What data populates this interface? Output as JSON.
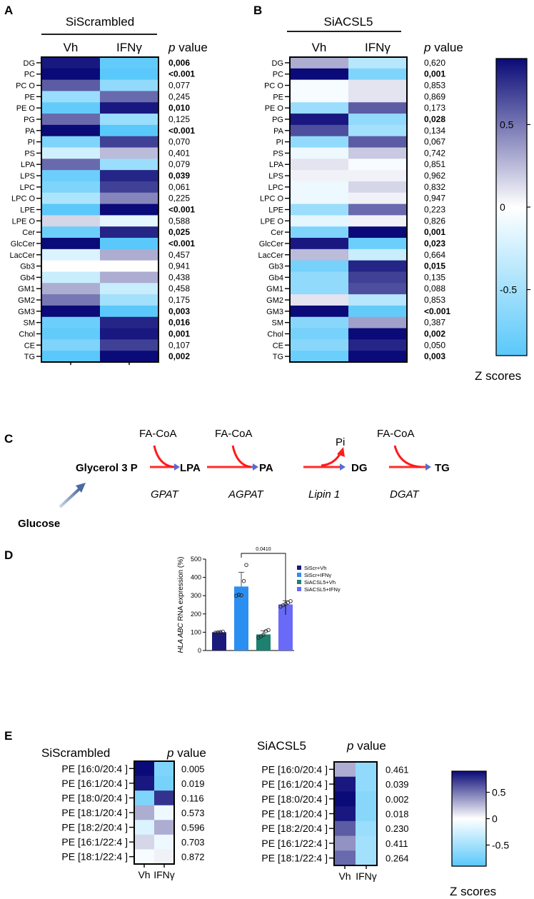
{
  "panel_labels": {
    "a": "A",
    "b": "B",
    "c": "C",
    "d": "D",
    "e": "E"
  },
  "colors": {
    "low": "#5ac8fa",
    "mid": "#ffffff",
    "high": "#0a0a78",
    "bar1": "#1a1a7a",
    "bar2": "#2a8ff0",
    "bar3": "#1e8070",
    "bar4": "#6a6af8",
    "arrow": "#ff1a1a"
  },
  "chart_data": [
    {
      "type": "heatmap",
      "id": "A",
      "title": "SiScrambled",
      "columns": [
        "Vh",
        "IFNγ"
      ],
      "pvalue_header_italic": "p",
      "pvalue_header": " value",
      "rows": [
        "DG",
        "PC",
        "PC O",
        "PE",
        "PE O",
        "PG",
        "PA",
        "PI",
        "PS",
        "LPA",
        "LPS",
        "LPC",
        "LPC O",
        "LPE",
        "LPE O",
        "Cer",
        "GlcCer",
        "LacCer",
        "Gb3",
        "Gb4",
        "GM1",
        "GM2",
        "GM3",
        "SM",
        "Chol",
        "CE",
        "TG"
      ],
      "values": [
        [
          0.85,
          -0.85
        ],
        [
          0.9,
          -0.9
        ],
        [
          0.6,
          -0.6
        ],
        [
          -0.55,
          0.55
        ],
        [
          -0.85,
          0.85
        ],
        [
          0.55,
          -0.55
        ],
        [
          0.95,
          -0.95
        ],
        [
          -0.7,
          0.7
        ],
        [
          -0.25,
          0.25
        ],
        [
          0.55,
          -0.55
        ],
        [
          -0.8,
          0.8
        ],
        [
          -0.7,
          0.7
        ],
        [
          -0.45,
          0.45
        ],
        [
          -0.95,
          0.95
        ],
        [
          0.15,
          -0.15
        ],
        [
          -0.8,
          0.8
        ],
        [
          0.95,
          -0.95
        ],
        [
          -0.2,
          0.3
        ],
        [
          0.0,
          0.0
        ],
        [
          -0.3,
          0.3
        ],
        [
          0.3,
          -0.3
        ],
        [
          0.5,
          -0.5
        ],
        [
          0.9,
          -0.9
        ],
        [
          -0.8,
          0.8
        ],
        [
          -0.85,
          0.85
        ],
        [
          -0.7,
          0.7
        ],
        [
          -0.9,
          0.9
        ]
      ],
      "pvalues": [
        "0,006",
        "<0.001",
        "0,077",
        "0,245",
        "0,010",
        "0,125",
        "<0.001",
        "0,070",
        "0,401",
        "0,079",
        "0,039",
        "0,061",
        "0,225",
        "<0.001",
        "0,588",
        "0,025",
        "<0.001",
        "0,457",
        "0,941",
        "0,438",
        "0,458",
        "0,175",
        "0,003",
        "0,016",
        "0,001",
        "0,107",
        "0,002"
      ],
      "bold": [
        true,
        true,
        false,
        false,
        true,
        false,
        true,
        false,
        false,
        false,
        true,
        false,
        false,
        true,
        false,
        true,
        true,
        false,
        false,
        false,
        false,
        false,
        true,
        true,
        true,
        false,
        true
      ],
      "vmin": -0.9,
      "vmax": 0.9
    },
    {
      "type": "heatmap",
      "id": "B",
      "title": "SiACSL5",
      "columns": [
        "Vh",
        "IFNγ"
      ],
      "pvalue_header_italic": "p",
      "pvalue_header": " value",
      "rows": [
        "DG",
        "PC",
        "PC O",
        "PE",
        "PE O",
        "PG",
        "PA",
        "PI",
        "PS",
        "LPA",
        "LPS",
        "LPC",
        "LPC O",
        "LPE",
        "LPE O",
        "Cer",
        "GlcCer",
        "LacCer",
        "Gb3",
        "Gb4",
        "GM1",
        "GM2",
        "GM3",
        "SM",
        "Chol",
        "CE",
        "TG"
      ],
      "values": [
        [
          0.3,
          -0.4
        ],
        [
          0.95,
          -0.7
        ],
        [
          -0.05,
          0.1
        ],
        [
          -0.05,
          0.1
        ],
        [
          -0.55,
          0.6
        ],
        [
          0.85,
          -0.6
        ],
        [
          0.65,
          -0.5
        ],
        [
          -0.6,
          0.6
        ],
        [
          -0.1,
          0.2
        ],
        [
          0.1,
          -0.05
        ],
        [
          0.05,
          0.05
        ],
        [
          -0.1,
          0.15
        ],
        [
          -0.1,
          0.05
        ],
        [
          -0.55,
          0.55
        ],
        [
          -0.15,
          0.05
        ],
        [
          -0.7,
          0.95
        ],
        [
          0.85,
          -0.8
        ],
        [
          0.25,
          -0.3
        ],
        [
          -0.75,
          0.8
        ],
        [
          -0.6,
          0.7
        ],
        [
          -0.6,
          0.65
        ],
        [
          0.1,
          -0.4
        ],
        [
          0.95,
          -0.85
        ],
        [
          -0.65,
          0.35
        ],
        [
          -0.75,
          0.9
        ],
        [
          -0.65,
          0.8
        ],
        [
          -0.8,
          0.9
        ]
      ],
      "pvalues": [
        "0,620",
        "0,001",
        "0,853",
        "0,869",
        "0,173",
        "0,028",
        "0,134",
        "0,067",
        "0,742",
        "0,851",
        "0,962",
        "0,832",
        "0,947",
        "0,223",
        "0,826",
        "0,001",
        "0,023",
        "0,664",
        "0,015",
        "0,135",
        "0,088",
        "0,853",
        "<0.001",
        "0,387",
        "0,002",
        "0,050",
        "0,003"
      ],
      "bold": [
        false,
        true,
        false,
        false,
        false,
        true,
        false,
        false,
        false,
        false,
        false,
        false,
        false,
        false,
        false,
        true,
        true,
        false,
        true,
        false,
        false,
        false,
        true,
        false,
        true,
        false,
        true
      ],
      "vmin": -0.9,
      "vmax": 0.9
    },
    {
      "type": "bar",
      "id": "D",
      "categories": [
        "SiScr+Vh",
        "SiScr+IFNγ",
        "SiACSL5+Vh",
        "SiACSL5+IFNγ"
      ],
      "values": [
        100,
        350,
        88,
        252
      ],
      "errors": [
        5,
        78,
        20,
        20
      ],
      "points": [
        [
          97,
          99,
          101,
          103
        ],
        [
          300,
          305,
          302,
          380,
          468
        ],
        [
          70,
          78,
          86,
          106,
          112
        ],
        [
          240,
          248,
          255,
          262,
          270
        ]
      ],
      "ylabel_italic": "HLA ABC",
      "ylabel": " RNA expression (%)",
      "ylim": [
        0,
        500
      ],
      "yticks": [
        "0",
        "100",
        "200",
        "300",
        "400",
        "500"
      ],
      "annotation": "0.0410",
      "legend": [
        "SiScr+Vh",
        "SiScr+IFNγ",
        "SiACSL5+Vh",
        "SiACSL5+IFNγ"
      ]
    },
    {
      "type": "heatmap",
      "id": "E1",
      "title": "SiScrambled",
      "columns": [
        "Vh",
        "IFNγ"
      ],
      "pvalue_header_italic": "p",
      "pvalue_header": " value",
      "rows": [
        "PE [16:0/20:4 ]",
        "PE [16:1/20:4 ]",
        "PE [18:0/20:4 ]",
        "PE [18:1/20:4 ]",
        "PE [18:2/20:4 ]",
        "PE [16:1/22:4 ]",
        "PE [18:1/22:4 ]"
      ],
      "values": [
        [
          0.9,
          -0.7
        ],
        [
          0.85,
          -0.75
        ],
        [
          -0.7,
          0.75
        ],
        [
          0.3,
          -0.1
        ],
        [
          -0.2,
          0.3
        ],
        [
          0.15,
          -0.1
        ],
        [
          -0.05,
          0.05
        ]
      ],
      "pvalues": [
        "0.005",
        "0.019",
        "0.116",
        "0.573",
        "0.596",
        "0.703",
        "0.872"
      ],
      "vmin": -0.9,
      "vmax": 0.9
    },
    {
      "type": "heatmap",
      "id": "E2",
      "title": "SiACSL5",
      "columns": [
        "Vh",
        "IFNγ"
      ],
      "pvalue_header_italic": "p",
      "pvalue_header": " value",
      "rows": [
        "PE [16:0/20:4 ]",
        "PE [16:1/20:4 ]",
        "PE [18:0/20:4 ]",
        "PE [18:1/20:4 ]",
        "PE [18:2/20:4 ]",
        "PE [16:1/22:4 ]",
        "PE [18:1/22:4 ]"
      ],
      "values": [
        [
          0.3,
          -0.6
        ],
        [
          0.85,
          -0.6
        ],
        [
          0.9,
          -0.65
        ],
        [
          0.85,
          -0.65
        ],
        [
          0.6,
          -0.55
        ],
        [
          0.4,
          -0.5
        ],
        [
          0.55,
          -0.5
        ]
      ],
      "pvalues": [
        "0.461",
        "0.039",
        "0.002",
        "0.018",
        "0.230",
        "0.411",
        "0.264"
      ],
      "vmin": -0.9,
      "vmax": 0.9
    },
    {
      "type": "colorbar",
      "id": "scale1",
      "ticks": [
        0.5,
        0,
        -0.5
      ],
      "tick_labels": [
        "0.5",
        "0",
        "-0.5"
      ],
      "label": "Z scores",
      "vmin": -0.9,
      "vmax": 0.9
    },
    {
      "type": "colorbar",
      "id": "scale2",
      "ticks": [
        0.5,
        0,
        -0.5
      ],
      "tick_labels": [
        "0.5",
        "0",
        "-0.5"
      ],
      "label": "Z scores",
      "vmin": -0.9,
      "vmax": 0.9
    }
  ],
  "pathway": {
    "nodes": [
      "Glycerol 3 P",
      "LPA",
      "PA",
      "DG",
      "TG"
    ],
    "substrates": [
      "FA-CoA",
      "FA-CoA",
      "FA-CoA"
    ],
    "byproduct": "Pi",
    "enzymes": [
      "GPAT",
      "AGPAT",
      "Lipin 1",
      "DGAT"
    ],
    "source": "Glucose"
  }
}
